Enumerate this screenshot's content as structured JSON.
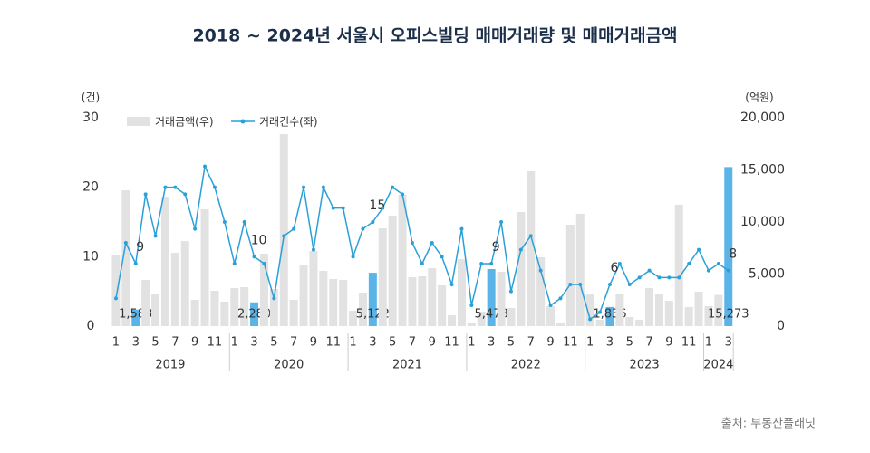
{
  "chart_data": {
    "type": "bar-line",
    "title": "2018 ~ 2024년 서울시 오피스빌딩 매매거래량 및 매매거래금액",
    "y_unit": "(건)",
    "y2_unit": "(억원)",
    "source": "출처: 부동산플래닛",
    "categories": [
      "1",
      null,
      "3",
      null,
      "5",
      null,
      "7",
      null,
      "9",
      null,
      "11",
      null,
      "1",
      null,
      "3",
      null,
      "5",
      null,
      "7",
      null,
      "9",
      null,
      "11",
      null,
      "1",
      null,
      "3",
      null,
      "5",
      null,
      "7",
      null,
      "9",
      null,
      "11",
      null,
      "1",
      null,
      "3",
      null,
      "5",
      null,
      "7",
      null,
      "9",
      null,
      "11",
      null,
      "1",
      null,
      "3",
      null,
      "5",
      null,
      "7",
      null,
      "9",
      null,
      "11",
      null,
      "1",
      null,
      "3"
    ],
    "years": [
      "2019",
      "2020",
      "2021",
      "2022",
      "2023",
      "2024"
    ],
    "ylim": [
      0,
      30
    ],
    "yticks": [
      0,
      10,
      20,
      30
    ],
    "y2lim": [
      0,
      20000
    ],
    "y2ticks": [
      0,
      {
        "value": 5000,
        "label": "5,000"
      },
      {
        "value": 10000,
        "label": "10,000"
      },
      {
        "value": 15000,
        "label": "15,000"
      },
      {
        "value": 20000,
        "label": "20,000"
      }
    ],
    "highlight_color": "#5bb4e8",
    "series": [
      {
        "name": "거래금액(우)",
        "type": "bar",
        "axis": "y2",
        "color": "#e2e2e2",
        "values": [
          6780,
          13040,
          1583,
          4430,
          3130,
          12430,
          7040,
          8170,
          2520,
          11220,
          3390,
          2350,
          3650,
          3740,
          2280,
          6960,
          3570,
          18430,
          2520,
          5910,
          7220,
          5300,
          4520,
          4430,
          1480,
          3220,
          5122,
          9390,
          10610,
          12610,
          4700,
          4780,
          5570,
          3910,
          1040,
          6430,
          350,
          1390,
          5478,
          5220,
          1740,
          10960,
          14870,
          6610,
          1910,
          350,
          9740,
          10780,
          3040,
          610,
          1836,
          3130,
          870,
          610,
          3650,
          3040,
          2430,
          11650,
          1830,
          3300,
          1910,
          3000,
          15273
        ],
        "value_labels": [
          null,
          null,
          "1,583",
          null,
          null,
          null,
          null,
          null,
          null,
          null,
          null,
          null,
          null,
          null,
          "2,280",
          null,
          null,
          null,
          null,
          null,
          null,
          null,
          null,
          null,
          null,
          null,
          "5,122",
          null,
          null,
          null,
          null,
          null,
          null,
          null,
          null,
          null,
          null,
          null,
          "5,478",
          null,
          null,
          null,
          null,
          null,
          null,
          null,
          null,
          null,
          null,
          null,
          "1,836",
          null,
          null,
          null,
          null,
          null,
          null,
          null,
          null,
          null,
          null,
          null,
          "15,273"
        ]
      },
      {
        "name": "거래건수(좌)",
        "type": "line",
        "axis": "y",
        "color": "#2aa0d8",
        "values": [
          4,
          12,
          9,
          19,
          13,
          20,
          20,
          19,
          14,
          23,
          20,
          15,
          9,
          15,
          10,
          9,
          4,
          13,
          14,
          20,
          11,
          20,
          17,
          17,
          10,
          14,
          15,
          17,
          20,
          19,
          12,
          9,
          12,
          10,
          6,
          14,
          3,
          9,
          9,
          15,
          5,
          11,
          13,
          8,
          3,
          4,
          6,
          6,
          1,
          2,
          6,
          9,
          6,
          7,
          8,
          7,
          7,
          7,
          9,
          11,
          8,
          9,
          8
        ],
        "value_labels": [
          null,
          null,
          "9",
          null,
          null,
          null,
          null,
          null,
          null,
          null,
          null,
          null,
          null,
          null,
          "10",
          null,
          null,
          null,
          null,
          null,
          null,
          null,
          null,
          null,
          null,
          null,
          "15",
          null,
          null,
          null,
          null,
          null,
          null,
          null,
          null,
          null,
          null,
          null,
          "9",
          null,
          null,
          null,
          null,
          null,
          null,
          null,
          null,
          null,
          null,
          null,
          "6",
          null,
          null,
          null,
          null,
          null,
          null,
          null,
          null,
          null,
          null,
          null,
          "8"
        ]
      }
    ]
  }
}
